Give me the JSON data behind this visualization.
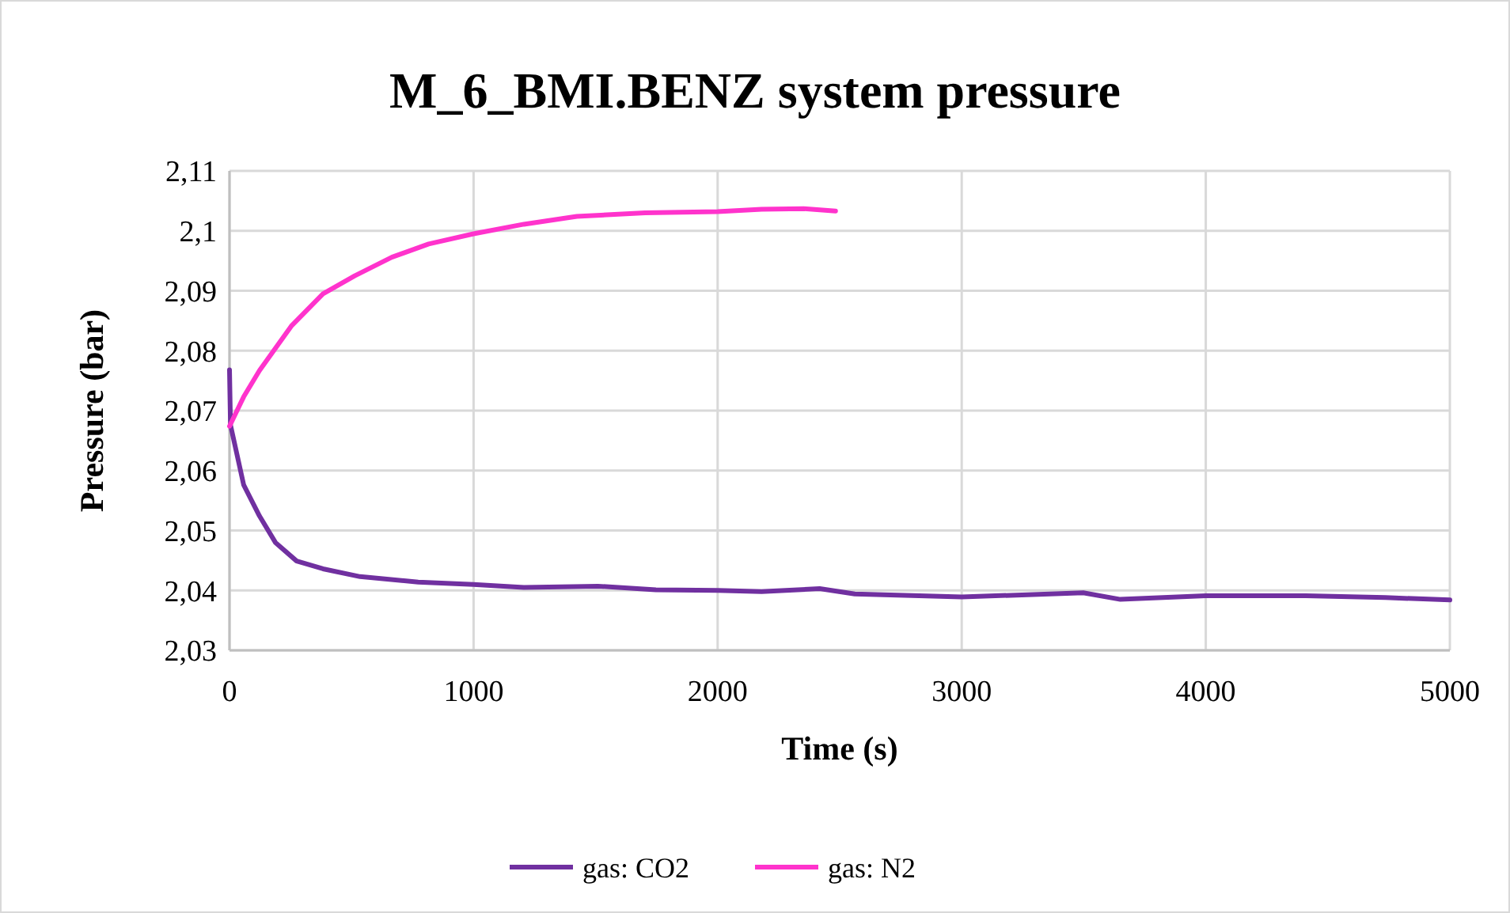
{
  "chart_data": {
    "type": "line",
    "title": "M_6_BMI.BENZ system pressure",
    "xlabel": "Time (s)",
    "ylabel": "Pressure (bar)",
    "xlim": [
      0,
      5000
    ],
    "xticks": [
      0,
      1000,
      2000,
      3000,
      4000,
      5000
    ],
    "ylim": [
      2.03,
      2.11
    ],
    "yticks": [
      {
        "value": 2.03,
        "label": "2,03"
      },
      {
        "value": 2.04,
        "label": "2,04"
      },
      {
        "value": 2.05,
        "label": "2,05"
      },
      {
        "value": 2.06,
        "label": "2,06"
      },
      {
        "value": 2.07,
        "label": "2,07"
      },
      {
        "value": 2.08,
        "label": "2,08"
      },
      {
        "value": 2.09,
        "label": "2,09"
      },
      {
        "value": 2.1,
        "label": "2,1"
      },
      {
        "value": 2.11,
        "label": "2,11"
      }
    ],
    "grid": true,
    "legend": "bottom",
    "marker": "none",
    "line_style": "solid",
    "series": [
      {
        "name": "gas: CO2",
        "color": "#7030a0",
        "x": [
          0,
          4,
          58,
          123,
          188,
          275,
          383,
          535,
          773,
          1000,
          1206,
          1509,
          1747,
          2000,
          2180,
          2418,
          2562,
          3000,
          3498,
          3650,
          4000,
          4410,
          4735,
          5000
        ],
        "values": [
          2.0768,
          2.0676,
          2.0576,
          2.0524,
          2.048,
          2.0449,
          2.0436,
          2.0423,
          2.0414,
          2.041,
          2.0405,
          2.0407,
          2.0401,
          2.04,
          2.0398,
          2.0403,
          2.0394,
          2.0389,
          2.0396,
          2.0385,
          2.0391,
          2.0391,
          2.0388,
          2.0384
        ]
      },
      {
        "name": "gas: N2",
        "color": "#ff33cc",
        "x": [
          0,
          58,
          123,
          253,
          383,
          513,
          665,
          816,
          1000,
          1206,
          1423,
          1703,
          2000,
          2180,
          2353,
          2483
        ],
        "values": [
          2.0674,
          2.0723,
          2.0767,
          2.0841,
          2.0895,
          2.0925,
          2.0956,
          2.0978,
          2.0995,
          2.1011,
          2.1024,
          2.103,
          2.1032,
          2.1036,
          2.1037,
          2.1033
        ]
      }
    ]
  }
}
